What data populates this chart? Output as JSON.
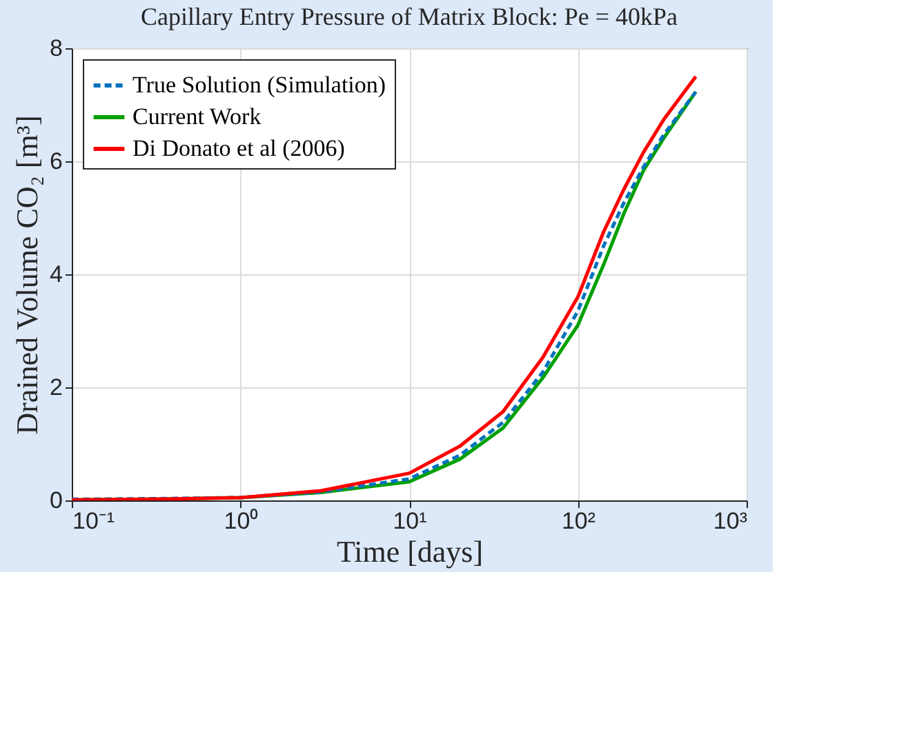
{
  "chart_data": {
    "type": "line",
    "title": "Capillary Entry Pressure of Matrix Block: Pe = 40kPa",
    "xlabel": "Time [days]",
    "ylabel": "Drained Volume CO₂ [m³]",
    "x": [
      0.1,
      0.3,
      1,
      3,
      10,
      20,
      36,
      62,
      100,
      142,
      187,
      245,
      323,
      500
    ],
    "series": [
      {
        "name": "True Solution (Simulation)",
        "color": "#0072bd",
        "line_style": "dashed",
        "values": [
          0.02,
          0.03,
          0.05,
          0.15,
          0.38,
          0.8,
          1.38,
          2.27,
          3.35,
          4.5,
          5.26,
          5.9,
          6.47,
          7.23
        ]
      },
      {
        "name": "Current Work",
        "color": "#00a000",
        "line_style": "solid",
        "values": [
          0.01,
          0.02,
          0.05,
          0.14,
          0.33,
          0.73,
          1.28,
          2.17,
          3.1,
          4.17,
          5.07,
          5.84,
          6.41,
          7.23
        ]
      },
      {
        "name": "Di Donato et al (2006)",
        "color": "#ff0000",
        "line_style": "solid",
        "values": [
          0.01,
          0.02,
          0.05,
          0.17,
          0.48,
          0.96,
          1.57,
          2.53,
          3.6,
          4.75,
          5.5,
          6.16,
          6.74,
          7.5
        ]
      }
    ],
    "log": "x",
    "xlim": [
      0.1,
      1000
    ],
    "xticks": [
      {
        "value": 0.1,
        "label": "10⁻¹"
      },
      {
        "value": 1,
        "label": "10⁰"
      },
      {
        "value": 10,
        "label": "10¹"
      },
      {
        "value": 100,
        "label": "10²"
      },
      {
        "value": 1000,
        "label": "10³"
      }
    ],
    "ylim": [
      0,
      8
    ],
    "yticks": [
      0,
      2,
      4,
      6,
      8
    ],
    "grid": true,
    "legend": "top left",
    "marker": "none"
  }
}
